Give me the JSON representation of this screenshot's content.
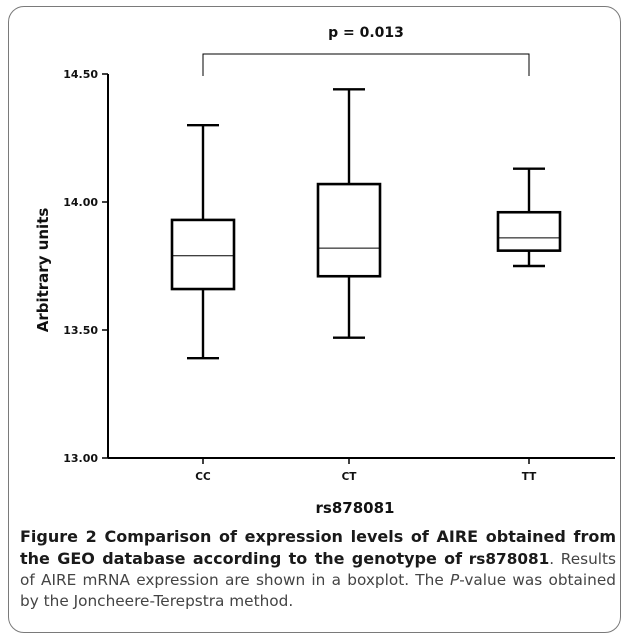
{
  "chart_data": {
    "type": "boxplot",
    "title": "",
    "xlabel": "rs878081",
    "ylabel": "Arbitrary units",
    "ylim": [
      13.0,
      14.5
    ],
    "yticks": [
      13.0,
      13.5,
      14.0,
      14.5
    ],
    "ytick_labels": [
      "13.00",
      "13.50",
      "14.00",
      "14.50"
    ],
    "categories": [
      "CC",
      "CT",
      "TT"
    ],
    "boxes": [
      {
        "category": "CC",
        "min": 13.39,
        "q1": 13.66,
        "median": 13.79,
        "q3": 13.93,
        "max": 14.3
      },
      {
        "category": "CT",
        "min": 13.47,
        "q1": 13.71,
        "median": 13.82,
        "q3": 14.07,
        "max": 14.44
      },
      {
        "category": "TT",
        "min": 13.75,
        "q1": 13.81,
        "median": 13.86,
        "q3": 13.96,
        "max": 14.13
      }
    ],
    "annotation": {
      "text": "p = 0.013",
      "from": "CC",
      "to": "TT"
    }
  },
  "caption": {
    "figure_title": "Figure 2 Comparison of expression levels of AIRE obtained from the GEO database according to the genotype of",
    "snp": "rs878081",
    "pre_p": ". Results of AIRE mRNA expression are shown in a boxplot. The ",
    "p_italic": "P",
    "post_p": "-value was obtained by the Joncheere-Terepstra method."
  }
}
